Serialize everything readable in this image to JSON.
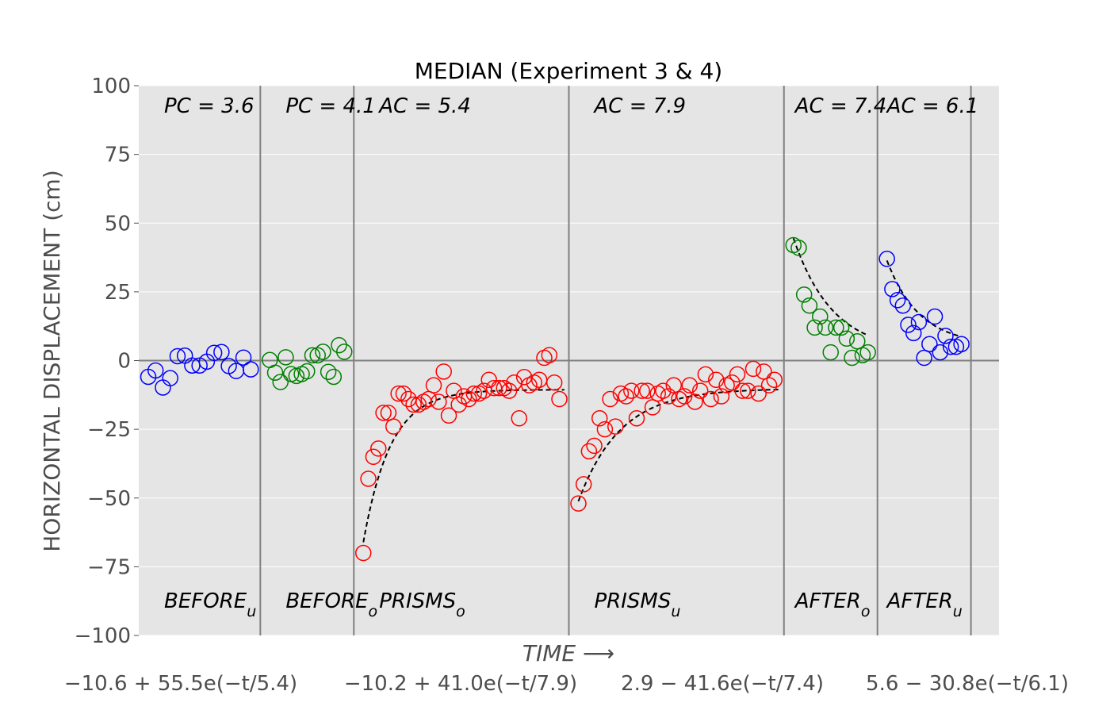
{
  "chart_data": {
    "type": "scatter",
    "title": "MEDIAN (Experiment 3 & 4)",
    "xlabel": "TIME ⟶",
    "ylabel": "HORIZONTAL DISPLACEMENT (cm)",
    "ylim": [
      -100,
      100
    ],
    "yticks": [
      "100",
      "75",
      "50",
      "25",
      "0",
      "−25",
      "−50",
      "−75",
      "−100"
    ],
    "grid": true,
    "legend": "none",
    "fit_equations": [
      "−10.6 + 55.5e(−t/5.4)",
      "−10.2 + 41.0e(−t/7.9)",
      "2.9 − 41.6e(−t/7.4)",
      "5.6 − 30.8e(−t/6.1)"
    ],
    "phases": [
      {
        "label": "BEFORE",
        "sub": "u",
        "constant": "PC = 3.6",
        "color": "#0000ff",
        "x_range": [
          0,
          13
        ],
        "values": [
          -5.9,
          -3.6,
          -9.8,
          -6.4,
          1.6,
          1.8,
          -1.8,
          -1.8,
          -0.4,
          2.8,
          3.1,
          -2,
          -3.8,
          1.1,
          -3.2
        ],
        "fit": null
      },
      {
        "label": "BEFORE",
        "sub": "o",
        "constant": "PC = 4.1",
        "color": "#008000",
        "x_range": [
          13,
          23
        ],
        "values": [
          0.2,
          -4.4,
          -7.8,
          1.2,
          -4.9,
          -5.6,
          -4.9,
          -3.9,
          1.9,
          1.9,
          3.2,
          -4.1,
          -5.9,
          5.6,
          3.2
        ],
        "fit": null
      },
      {
        "label": "PRISMS",
        "sub": "o",
        "constant": "AC = 5.4",
        "color": "#ff0000",
        "x_range": [
          23,
          46
        ],
        "values": [
          -70,
          -43,
          -35,
          -32,
          -19,
          -19,
          -24,
          -12,
          -12,
          -14,
          -16,
          -16,
          -15,
          -14,
          -9,
          -15,
          -4,
          -20,
          -11,
          -16,
          -13,
          -14,
          -12,
          -12,
          -11,
          -7,
          -10,
          -10,
          -10,
          -11,
          -8,
          -21,
          -6,
          -9,
          -8,
          -7,
          1,
          2,
          -8,
          -14
        ],
        "fit": {
          "type": "exp",
          "a": -10.6,
          "b": -55.5,
          "tau": 5.4,
          "t_end": 40
        }
      },
      {
        "label": "PRISMS",
        "sub": "u",
        "constant": "AC = 7.9",
        "color": "#ff0000",
        "x_range": [
          46,
          69
        ],
        "values": [
          -52,
          -45,
          -33,
          -31,
          -21,
          -25,
          -14,
          -24,
          -12,
          -13,
          -11,
          -21,
          -11,
          -11,
          -17,
          -12,
          -11,
          -13,
          -9,
          -14,
          -13,
          -9,
          -15,
          -11,
          -5,
          -14,
          -7,
          -13,
          -9,
          -8,
          -5,
          -11,
          -11,
          -3,
          -12,
          -4,
          -9,
          -7
        ],
        "fit": {
          "type": "exp",
          "a": -10.2,
          "b": -41.0,
          "tau": 7.9,
          "t_end": 38
        }
      },
      {
        "label": "AFTER",
        "sub": "o",
        "constant": "AC = 7.4",
        "color": "#008000",
        "x_range": [
          69,
          79
        ],
        "values": [
          42,
          41,
          24,
          20,
          12,
          16,
          12,
          3,
          12,
          12,
          8,
          1,
          7,
          2,
          3
        ],
        "fit": {
          "type": "exp",
          "a": 2.9,
          "b": 41.6,
          "tau": 7.4,
          "t_end": 14
        }
      },
      {
        "label": "AFTER",
        "sub": "u",
        "constant": "AC = 6.1",
        "color": "#0000ff",
        "x_range": [
          79,
          89
        ],
        "values": [
          37,
          26,
          22,
          20,
          13,
          10,
          14,
          1,
          6,
          16,
          3,
          9,
          5,
          5,
          6
        ],
        "fit": {
          "type": "exp",
          "a": 5.6,
          "b": 30.8,
          "tau": 6.1,
          "t_end": 14
        }
      }
    ]
  }
}
